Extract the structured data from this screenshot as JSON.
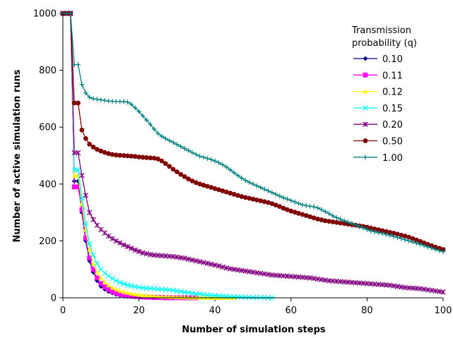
{
  "chart_data": {
    "type": "line",
    "title": "",
    "xlabel": "Number of simulation steps",
    "ylabel": "Number of active simulation runs",
    "xlim": [
      0,
      100
    ],
    "ylim": [
      0,
      1000
    ],
    "xticks": [
      0,
      20,
      40,
      60,
      80,
      100
    ],
    "yticks": [
      0,
      200,
      400,
      600,
      800,
      1000
    ],
    "grid": false,
    "legend": {
      "title_lines": [
        "Transmission",
        "probability (q)"
      ],
      "placement": "top-right"
    },
    "series": [
      {
        "name": "0.10",
        "color": "#000080",
        "marker": "diamond",
        "x": [
          0,
          1,
          2,
          3,
          4,
          5,
          6,
          7,
          8,
          9,
          10,
          11,
          12,
          13,
          14,
          15,
          16,
          17,
          18,
          19,
          20,
          21,
          22,
          23,
          24,
          25,
          26,
          27,
          28,
          29,
          30
        ],
        "y": [
          1000,
          1000,
          1000,
          410,
          410,
          300,
          200,
          130,
          90,
          60,
          40,
          30,
          22,
          17,
          12,
          9,
          7,
          5,
          4,
          3,
          2,
          2,
          1,
          1,
          1,
          0,
          0,
          0,
          0,
          0,
          0
        ]
      },
      {
        "name": "0.11",
        "color": "#ff00ff",
        "marker": "square",
        "x": [
          0,
          1,
          2,
          3,
          4,
          5,
          6,
          7,
          8,
          9,
          10,
          11,
          12,
          13,
          14,
          15,
          16,
          17,
          18,
          19,
          20,
          21,
          22,
          23,
          24,
          25,
          26,
          27,
          28,
          29,
          30,
          31,
          32,
          33,
          34,
          35
        ],
        "y": [
          1000,
          1000,
          1000,
          390,
          390,
          310,
          210,
          140,
          100,
          70,
          50,
          38,
          29,
          22,
          17,
          13,
          10,
          8,
          6,
          5,
          4,
          3,
          2,
          2,
          1,
          1,
          1,
          0,
          0,
          0,
          0,
          0,
          0,
          0,
          0,
          0
        ]
      },
      {
        "name": "0.12",
        "color": "#ffff00",
        "marker": "triangle",
        "x": [
          0,
          1,
          2,
          3,
          4,
          5,
          6,
          7,
          8,
          9,
          10,
          11,
          12,
          13,
          14,
          15,
          16,
          17,
          18,
          19,
          20,
          21,
          22,
          23,
          24,
          25,
          26,
          27,
          28,
          29,
          30,
          31,
          32,
          33,
          34,
          35,
          36,
          37,
          38,
          39,
          40,
          41,
          42,
          43,
          44,
          45
        ],
        "y": [
          1000,
          1000,
          1000,
          430,
          430,
          330,
          240,
          170,
          120,
          90,
          70,
          55,
          44,
          36,
          30,
          25,
          21,
          18,
          15,
          13,
          11,
          9,
          8,
          7,
          6,
          5,
          4,
          4,
          3,
          3,
          2,
          2,
          2,
          1,
          1,
          1,
          1,
          1,
          0,
          0,
          0,
          0,
          0,
          0,
          0,
          0
        ]
      },
      {
        "name": "0.15",
        "color": "#00ffff",
        "marker": "x",
        "x": [
          0,
          1,
          2,
          3,
          4,
          5,
          6,
          7,
          8,
          9,
          10,
          11,
          12,
          13,
          14,
          15,
          16,
          17,
          18,
          19,
          20,
          21,
          22,
          23,
          24,
          25,
          26,
          27,
          28,
          29,
          30,
          31,
          32,
          33,
          34,
          35,
          36,
          37,
          38,
          39,
          40,
          41,
          42,
          43,
          44,
          45,
          46,
          47,
          48,
          49,
          50,
          51,
          52,
          53,
          54,
          55
        ],
        "y": [
          1000,
          1000,
          1000,
          450,
          450,
          350,
          260,
          190,
          150,
          120,
          100,
          87,
          77,
          68,
          60,
          54,
          49,
          45,
          42,
          39,
          37,
          35,
          34,
          33,
          32,
          31,
          30,
          29,
          28,
          26,
          24,
          22,
          20,
          18,
          16,
          14,
          13,
          11,
          10,
          9,
          8,
          7,
          6,
          5,
          4,
          4,
          3,
          3,
          2,
          2,
          1,
          1,
          1,
          1,
          0,
          0
        ]
      },
      {
        "name": "0.20",
        "color": "#800080",
        "marker": "star",
        "x": [
          0,
          1,
          2,
          3,
          4,
          5,
          6,
          7,
          8,
          9,
          10,
          11,
          12,
          13,
          14,
          15,
          16,
          17,
          18,
          19,
          20,
          21,
          22,
          23,
          24,
          25,
          26,
          27,
          28,
          29,
          30,
          31,
          32,
          33,
          34,
          35,
          36,
          37,
          38,
          39,
          40,
          41,
          42,
          43,
          44,
          45,
          46,
          47,
          48,
          49,
          50,
          51,
          52,
          53,
          54,
          55,
          56,
          57,
          58,
          59,
          60,
          61,
          62,
          63,
          64,
          65,
          66,
          67,
          68,
          69,
          70,
          71,
          72,
          73,
          74,
          75,
          76,
          77,
          78,
          79,
          80,
          81,
          82,
          83,
          84,
          85,
          86,
          87,
          88,
          89,
          90,
          91,
          92,
          93,
          94,
          95,
          96,
          97,
          98,
          99,
          100
        ],
        "y": [
          1000,
          1000,
          1000,
          510,
          510,
          430,
          360,
          300,
          275,
          255,
          240,
          228,
          217,
          208,
          200,
          193,
          186,
          180,
          174,
          168,
          163,
          158,
          155,
          152,
          150,
          149,
          148,
          147,
          146,
          145,
          143,
          141,
          139,
          136,
          133,
          130,
          127,
          124,
          121,
          118,
          115,
          112,
          108,
          105,
          102,
          100,
          98,
          96,
          94,
          92,
          90,
          88,
          86,
          84,
          82,
          80,
          79,
          78,
          77,
          76,
          75,
          74,
          73,
          72,
          71,
          70,
          68,
          66,
          64,
          62,
          60,
          59,
          58,
          57,
          56,
          55,
          54,
          53,
          52,
          51,
          50,
          49,
          48,
          47,
          46,
          45,
          44,
          42,
          40,
          38,
          36,
          35,
          34,
          33,
          32,
          30,
          28,
          26,
          24,
          22,
          20
        ]
      },
      {
        "name": "0.50",
        "color": "#800000",
        "marker": "circle",
        "x": [
          0,
          1,
          2,
          3,
          4,
          5,
          6,
          7,
          8,
          9,
          10,
          11,
          12,
          13,
          14,
          15,
          16,
          17,
          18,
          19,
          20,
          21,
          22,
          23,
          24,
          25,
          26,
          27,
          28,
          29,
          30,
          31,
          32,
          33,
          34,
          35,
          36,
          37,
          38,
          39,
          40,
          41,
          42,
          43,
          44,
          45,
          46,
          47,
          48,
          49,
          50,
          51,
          52,
          53,
          54,
          55,
          56,
          57,
          58,
          59,
          60,
          61,
          62,
          63,
          64,
          65,
          66,
          67,
          68,
          69,
          70,
          71,
          72,
          73,
          74,
          75,
          76,
          77,
          78,
          79,
          80,
          81,
          82,
          83,
          84,
          85,
          86,
          87,
          88,
          89,
          90,
          91,
          92,
          93,
          94,
          95,
          96,
          97,
          98,
          99,
          100
        ],
        "y": [
          1000,
          1000,
          1000,
          685,
          685,
          590,
          560,
          540,
          530,
          522,
          516,
          511,
          507,
          504,
          502,
          501,
          500,
          499,
          498,
          497,
          495,
          494,
          493,
          492,
          491,
          488,
          481,
          472,
          462,
          452,
          443,
          434,
          426,
          418,
          411,
          405,
          400,
          396,
          392,
          388,
          384,
          380,
          376,
          372,
          368,
          364,
          360,
          356,
          353,
          350,
          347,
          344,
          341,
          338,
          335,
          331,
          326,
          321,
          315,
          310,
          305,
          301,
          297,
          293,
          289,
          285,
          281,
          277,
          274,
          271,
          269,
          267,
          265,
          263,
          261,
          259,
          257,
          255,
          253,
          251,
          248,
          245,
          242,
          239,
          236,
          233,
          230,
          227,
          224,
          220,
          217,
          213,
          208,
          203,
          198,
          193,
          188,
          183,
          178,
          174,
          170
        ]
      },
      {
        "name": "1.00",
        "color": "#008080",
        "marker": "plus",
        "x": [
          0,
          1,
          2,
          3,
          4,
          5,
          6,
          7,
          8,
          9,
          10,
          11,
          12,
          13,
          14,
          15,
          16,
          17,
          18,
          19,
          20,
          21,
          22,
          23,
          24,
          25,
          26,
          27,
          28,
          29,
          30,
          31,
          32,
          33,
          34,
          35,
          36,
          37,
          38,
          39,
          40,
          41,
          42,
          43,
          44,
          45,
          46,
          47,
          48,
          49,
          50,
          51,
          52,
          53,
          54,
          55,
          56,
          57,
          58,
          59,
          60,
          61,
          62,
          63,
          64,
          65,
          66,
          67,
          68,
          69,
          70,
          71,
          72,
          73,
          74,
          75,
          76,
          77,
          78,
          79,
          80,
          81,
          82,
          83,
          84,
          85,
          86,
          87,
          88,
          89,
          90,
          91,
          92,
          93,
          94,
          95,
          96,
          97,
          98,
          99,
          100
        ],
        "y": [
          1000,
          1000,
          1000,
          820,
          820,
          750,
          720,
          705,
          700,
          698,
          696,
          694,
          692,
          691,
          690,
          690,
          690,
          688,
          680,
          668,
          655,
          640,
          625,
          610,
          593,
          578,
          568,
          560,
          553,
          546,
          539,
          532,
          525,
          518,
          511,
          504,
          498,
          494,
          490,
          486,
          481,
          475,
          468,
          460,
          450,
          440,
          430,
          421,
          413,
          406,
          400,
          394,
          388,
          382,
          376,
          370,
          364,
          358,
          352,
          347,
          342,
          337,
          332,
          327,
          324,
          322,
          320,
          316,
          310,
          303,
          296,
          288,
          282,
          276,
          271,
          266,
          261,
          256,
          251,
          246,
          240,
          235,
          232,
          229,
          226,
          223,
          220,
          216,
          212,
          208,
          204,
          200,
          196,
          192,
          188,
          184,
          179,
          175,
          170,
          166,
          162
        ]
      }
    ]
  }
}
